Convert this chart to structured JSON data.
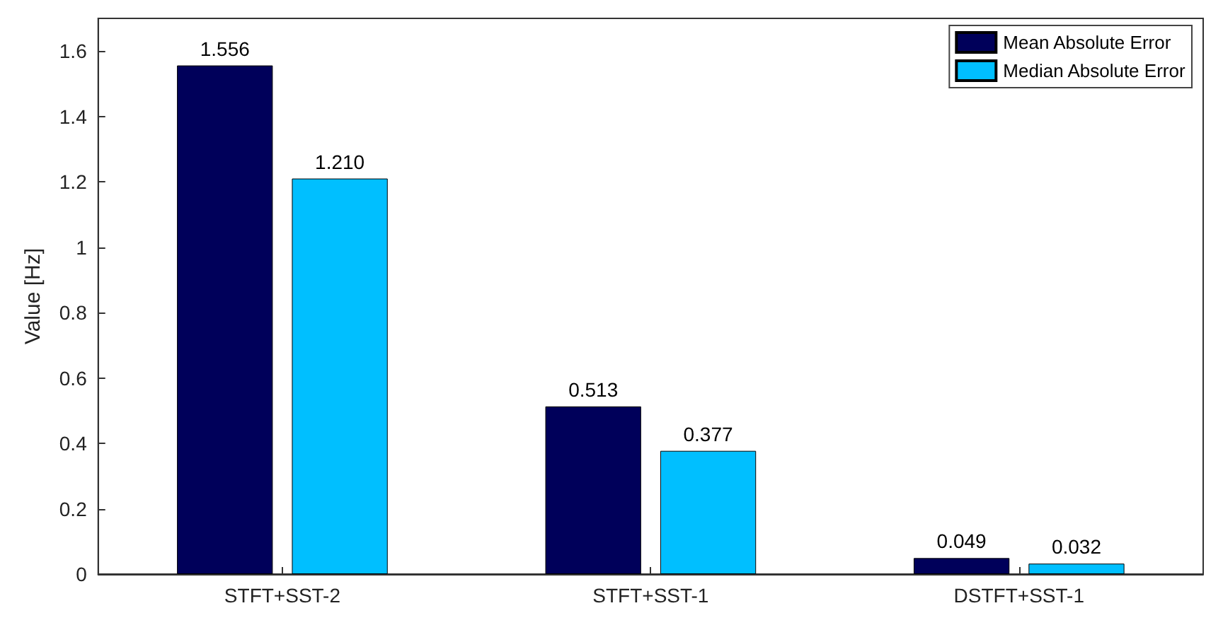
{
  "chart_data": {
    "type": "bar",
    "ylabel": "Value [Hz]",
    "categories": [
      "STFT+SST-2",
      "STFT+SST-1",
      "DSTFT+SST-1"
    ],
    "series": [
      {
        "name": "Mean Absolute Error",
        "color": "#00005a",
        "values": [
          1.556,
          0.513,
          0.049
        ],
        "value_labels": [
          "1.556",
          "0.513",
          "0.049"
        ]
      },
      {
        "name": "Median Absolute Error",
        "color": "#00bfff",
        "values": [
          1.21,
          0.377,
          0.032
        ],
        "value_labels": [
          "1.210",
          "0.377",
          "0.032"
        ]
      }
    ],
    "ylim": [
      0,
      1.7
    ],
    "yticks": [
      0,
      0.2,
      0.4,
      0.6,
      0.8,
      1,
      1.2,
      1.4,
      1.6
    ],
    "grid": false,
    "legend": "top right"
  }
}
